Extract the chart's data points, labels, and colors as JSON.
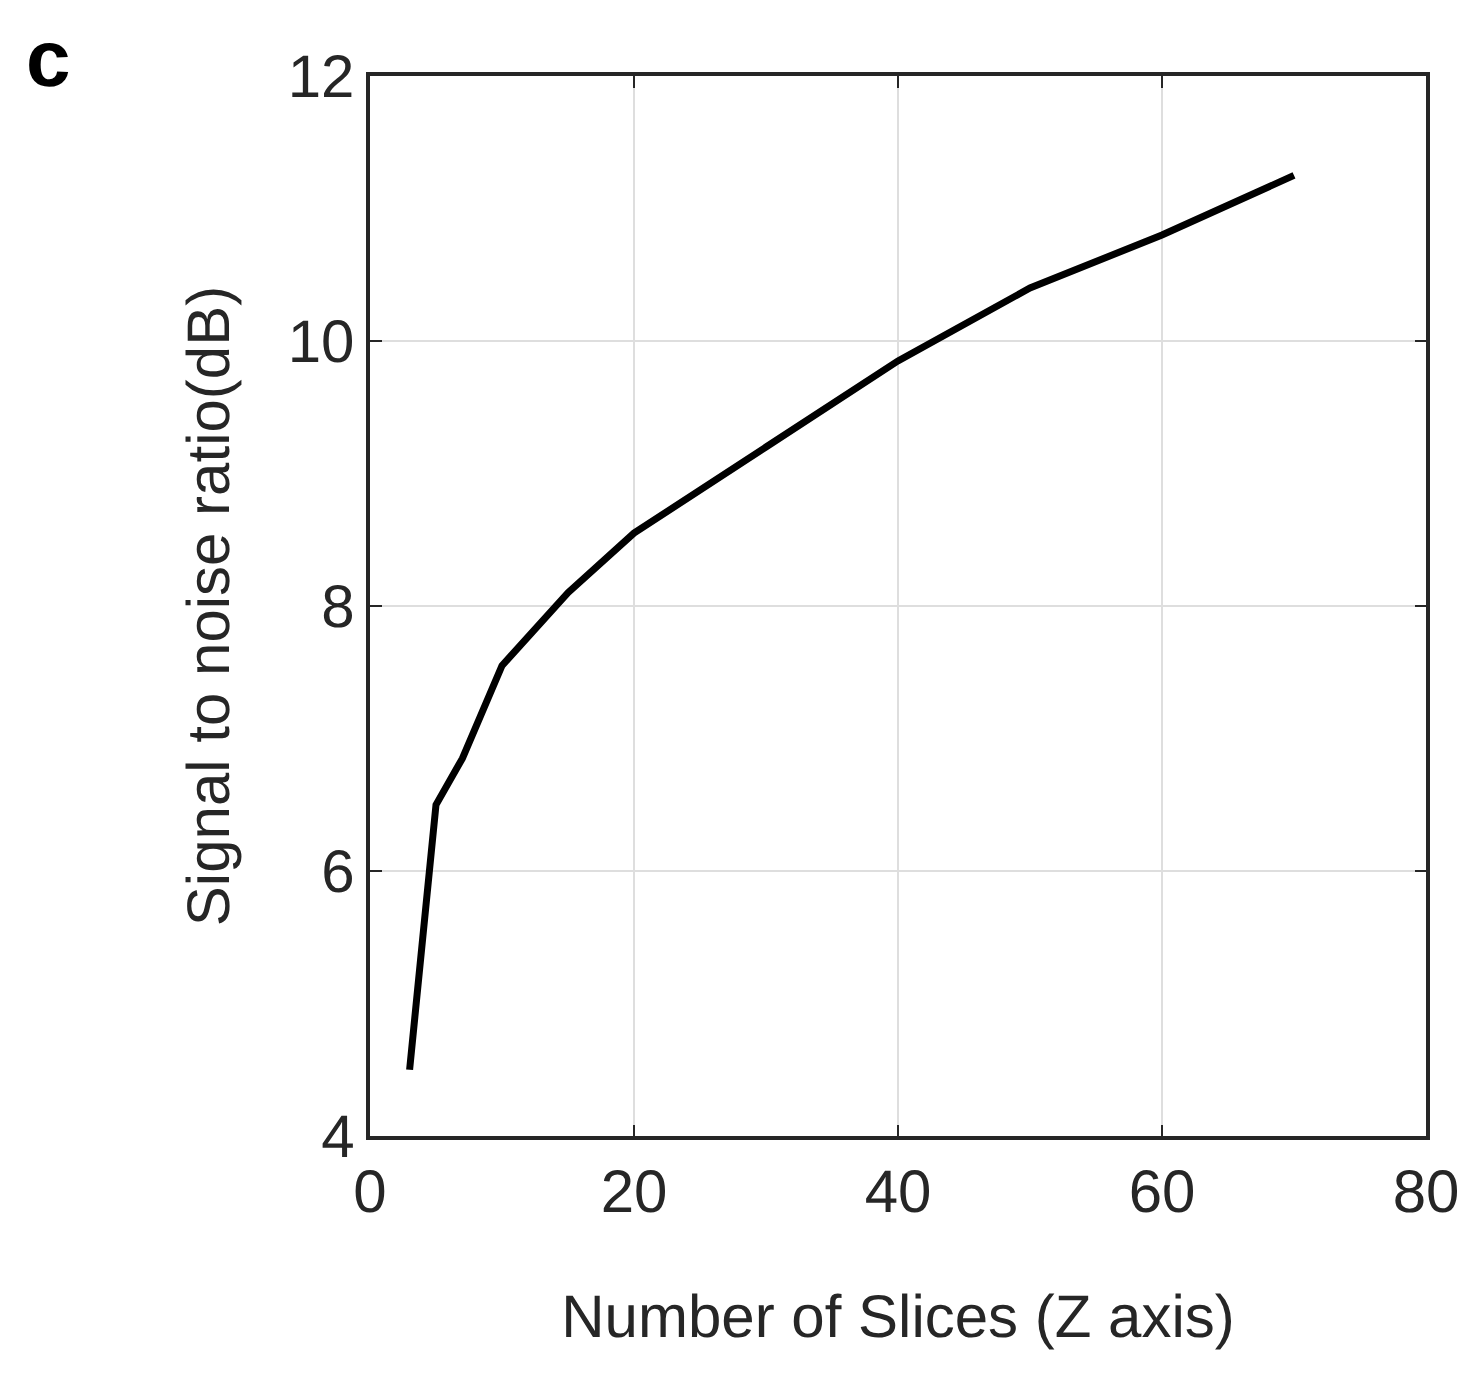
{
  "chart_data": {
    "type": "line",
    "x": [
      3,
      5,
      7,
      10,
      15,
      20,
      30,
      40,
      50,
      60,
      70
    ],
    "series": [
      {
        "color": "#000000",
        "values": [
          4.5,
          6.5,
          6.85,
          7.55,
          8.1,
          8.55,
          9.2,
          9.85,
          10.4,
          10.8,
          11.25
        ]
      }
    ],
    "xlabel": "Number of Slices (Z axis)",
    "ylabel": "Signal to noise ratio(dB)",
    "xlim": [
      0,
      80
    ],
    "xticks": [
      0,
      20,
      40,
      60,
      80
    ],
    "ylim": [
      4,
      12
    ],
    "yticks": [
      4,
      6,
      8,
      10,
      12
    ],
    "grid": true,
    "marker": "none",
    "line_style": "solid",
    "annotations": [
      "c"
    ]
  }
}
